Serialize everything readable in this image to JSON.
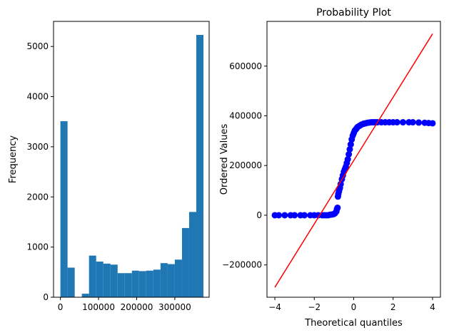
{
  "chart_data": [
    {
      "type": "bar",
      "subtype": "histogram",
      "title": "",
      "xlabel": "",
      "ylabel": "Frequency",
      "xlim": [
        -18000,
        390000
      ],
      "ylim": [
        0,
        5500
      ],
      "xticks": [
        0,
        100000,
        200000,
        300000
      ],
      "xtick_labels": [
        "0",
        "100000",
        "200000",
        "300000"
      ],
      "yticks": [
        0,
        1000,
        2000,
        3000,
        4000,
        5000
      ],
      "ytick_labels": [
        "0",
        "1000",
        "2000",
        "3000",
        "4000",
        "5000"
      ],
      "bin_edges": [
        0,
        18750,
        37500,
        56250,
        75000,
        93750,
        112500,
        131250,
        150000,
        168750,
        187500,
        206250,
        225000,
        243750,
        262500,
        281250,
        300000,
        318750,
        337500,
        356250,
        375000
      ],
      "values": [
        3510,
        590,
        0,
        70,
        830,
        710,
        670,
        650,
        480,
        480,
        530,
        520,
        530,
        550,
        680,
        660,
        750,
        1380,
        1700,
        5230
      ],
      "bar_color": "#1f77b4",
      "grid": false
    },
    {
      "type": "scatter",
      "subtype": "probability-plot",
      "title": "Probability Plot",
      "xlabel": "Theoretical quantiles",
      "ylabel": "Ordered Values",
      "xlim": [
        -4.4,
        4.4
      ],
      "ylim": [
        -330000,
        780000
      ],
      "xticks": [
        -4,
        -2,
        0,
        2,
        4
      ],
      "xtick_labels": [
        "−4",
        "−2",
        "0",
        "2",
        "4"
      ],
      "yticks": [
        -200000,
        0,
        200000,
        400000,
        600000
      ],
      "ytick_labels": [
        "−200000",
        "0",
        "200000",
        "400000",
        "600000"
      ],
      "grid": false,
      "points_color": "#0000ff",
      "fit_line_color": "#ff0000",
      "points": {
        "x": [
          -4.0,
          -3.8,
          -3.5,
          -3.2,
          -3.0,
          -2.7,
          -2.5,
          -2.2,
          -2.0,
          -1.8,
          -1.6,
          -1.5,
          -1.4,
          -1.3,
          -1.2,
          -1.1,
          -1.0,
          -0.95,
          -0.88,
          -0.85,
          -0.82,
          -0.8,
          -0.78,
          -0.75,
          -0.72,
          -0.7,
          -0.66,
          -0.6,
          -0.55,
          -0.5,
          -0.45,
          -0.4,
          -0.35,
          -0.3,
          -0.25,
          -0.2,
          -0.15,
          -0.1,
          -0.05,
          0.0,
          0.05,
          0.1,
          0.15,
          0.2,
          0.3,
          0.4,
          0.5,
          0.6,
          0.7,
          0.8,
          0.9,
          1.0,
          1.1,
          1.2,
          1.4,
          1.6,
          1.8,
          2.0,
          2.2,
          2.5,
          2.8,
          3.0,
          3.3,
          3.6,
          3.8,
          4.0
        ],
        "y": [
          0,
          0,
          0,
          0,
          0,
          0,
          0,
          0,
          0,
          0,
          0,
          0,
          0,
          0,
          2000,
          3000,
          5000,
          8000,
          15000,
          25000,
          30000,
          75000,
          85000,
          95000,
          105000,
          110000,
          125000,
          145000,
          160000,
          175000,
          185000,
          195000,
          210000,
          225000,
          245000,
          265000,
          285000,
          305000,
          320000,
          330000,
          340000,
          345000,
          350000,
          355000,
          360000,
          365000,
          368000,
          370000,
          372000,
          373000,
          374000,
          374000,
          374000,
          374000,
          374000,
          374000,
          374000,
          374000,
          374000,
          374000,
          374000,
          374000,
          373000,
          372000,
          371000,
          370000
        ]
      },
      "fit_line": {
        "x": [
          -4.0,
          4.0
        ],
        "y": [
          -290000,
          730000
        ]
      }
    }
  ]
}
